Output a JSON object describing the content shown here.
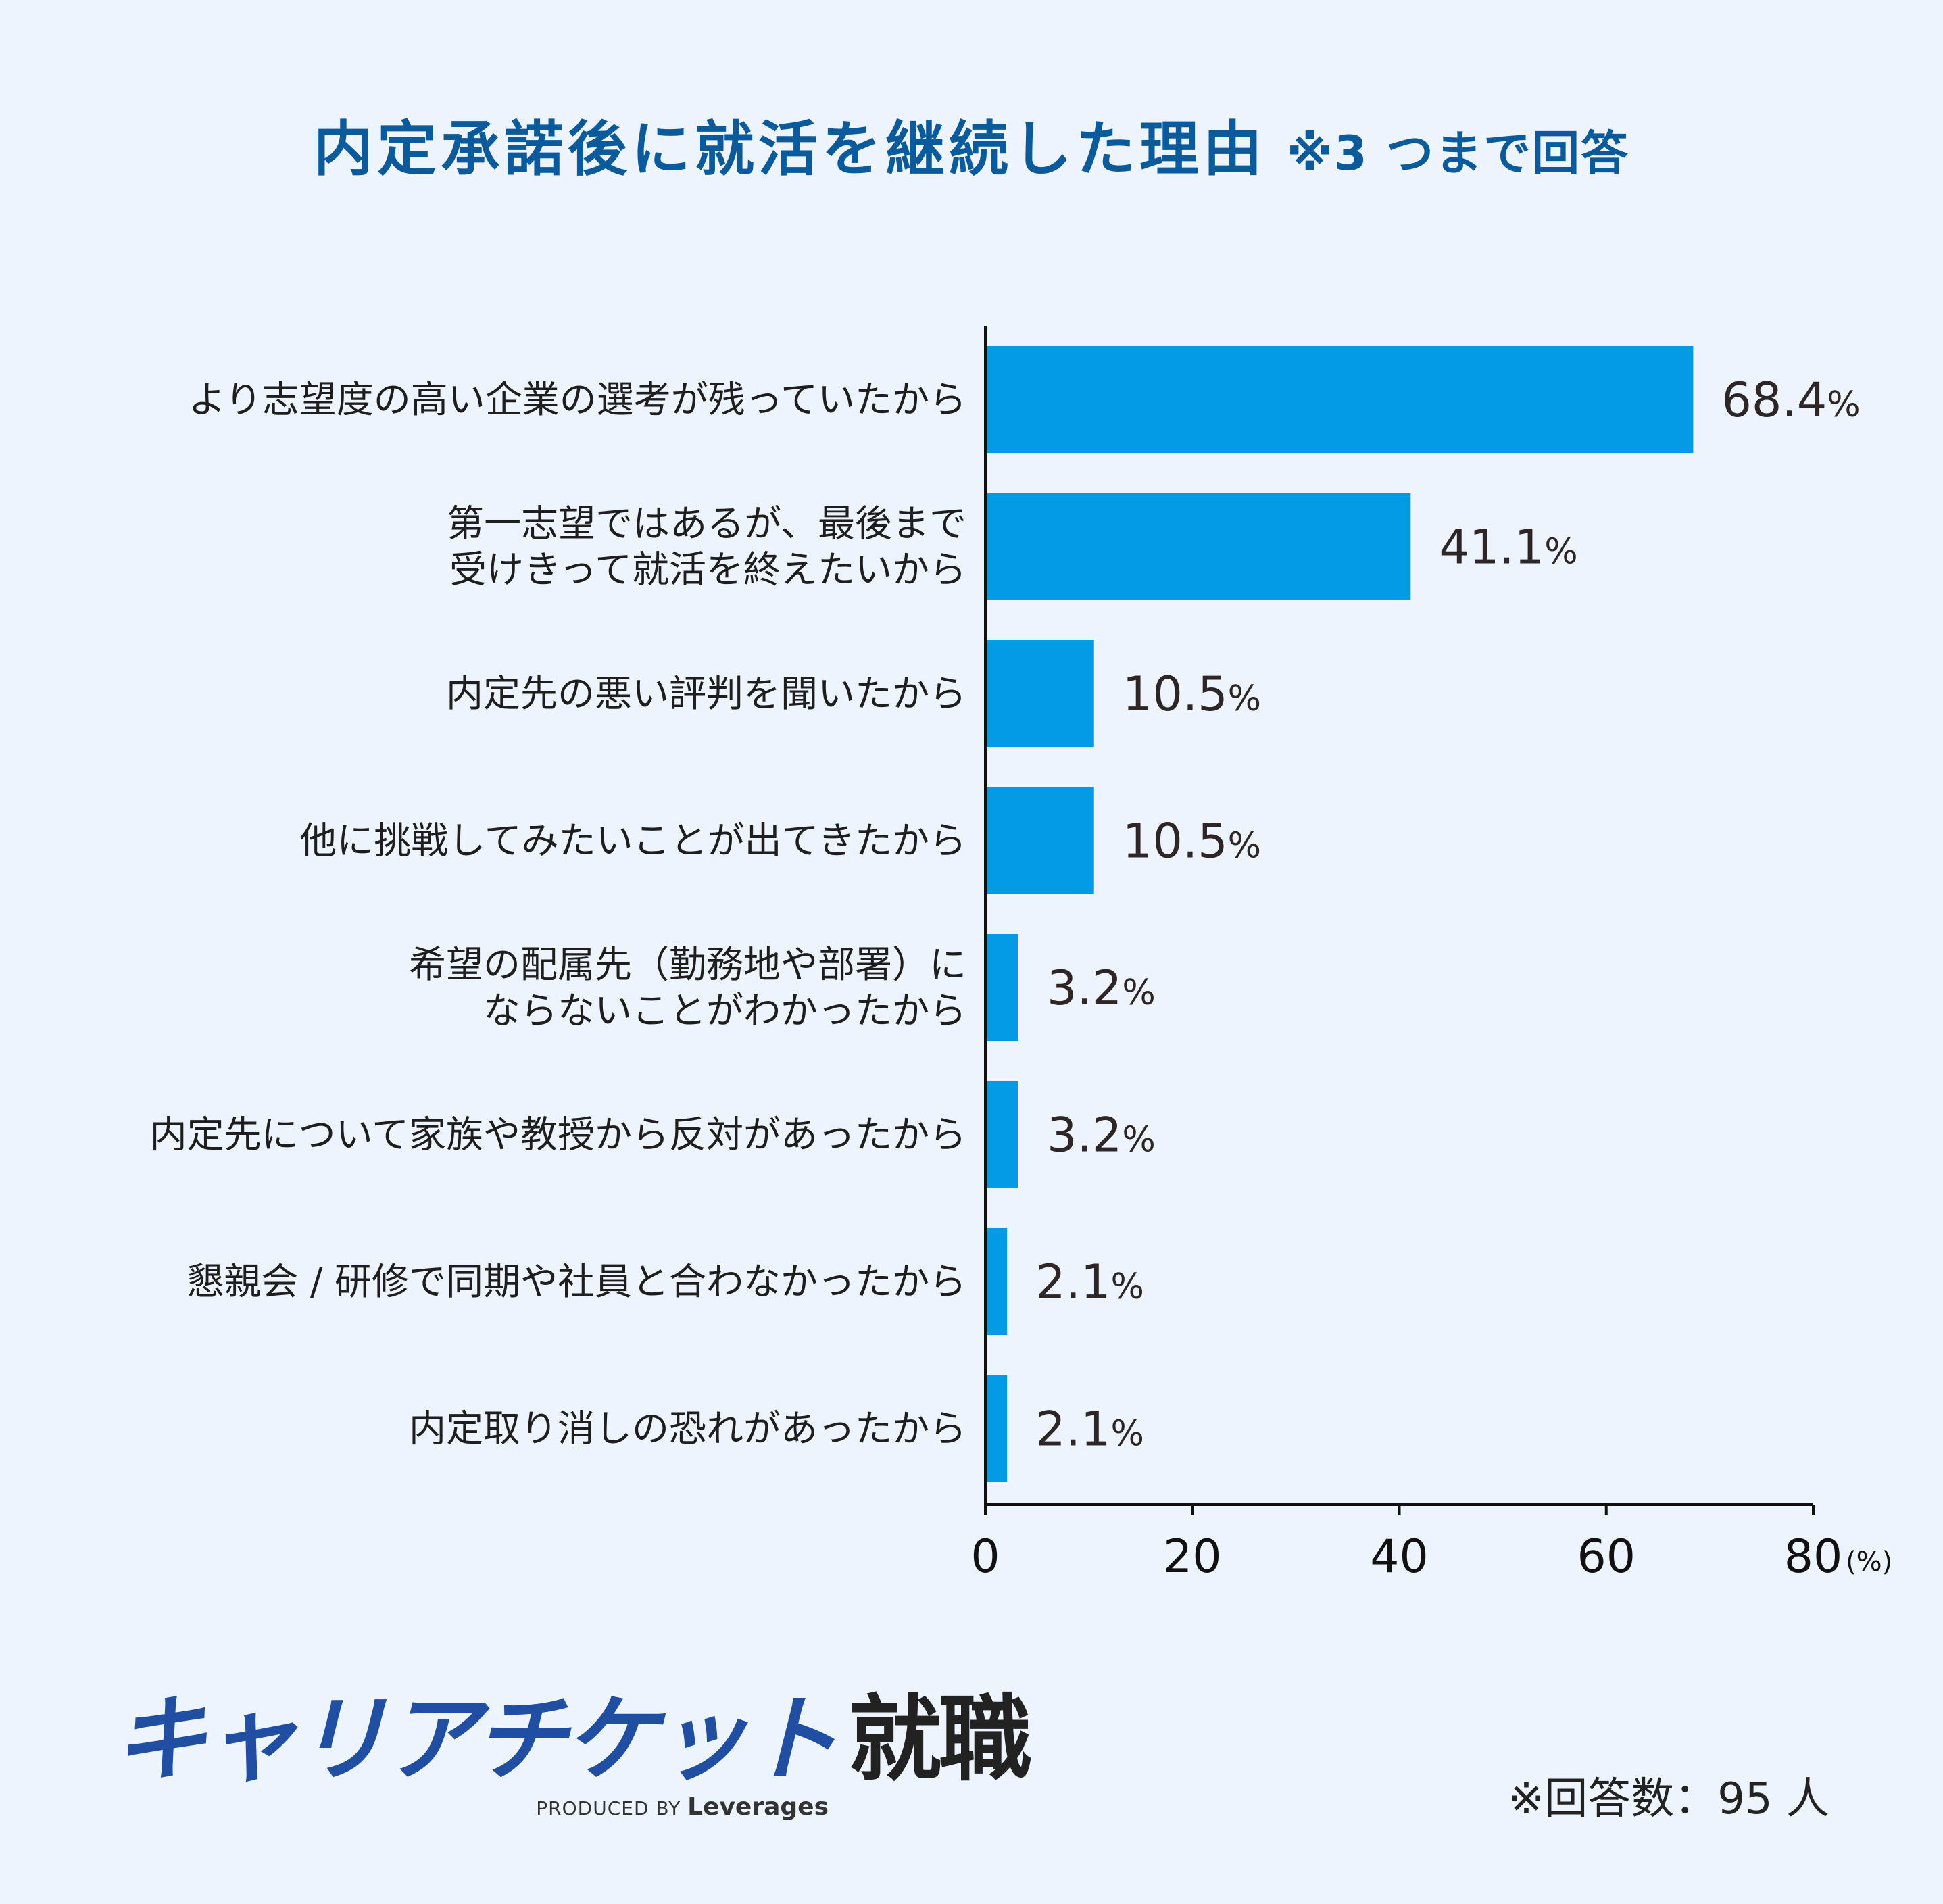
{
  "title": {
    "main": "内定承諾後に就活を継続した理由",
    "note": "※3 つまで回答"
  },
  "chart_data": {
    "type": "bar",
    "orientation": "horizontal",
    "categories": [
      [
        "より志望度の高い企業の選考が残っていたから"
      ],
      [
        "第一志望ではあるが、最後まで",
        "受けきって就活を終えたいから"
      ],
      [
        "内定先の悪い評判を聞いたから"
      ],
      [
        "他に挑戦してみたいことが出てきたから"
      ],
      [
        "希望の配属先（勤務地や部署）に",
        "ならないことがわかったから"
      ],
      [
        "内定先について家族や教授から反対があったから"
      ],
      [
        "懇親会 / 研修で同期や社員と合わなかったから"
      ],
      [
        "内定取り消しの恐れがあったから"
      ]
    ],
    "values": [
      68.4,
      41.1,
      10.5,
      10.5,
      3.2,
      3.2,
      2.1,
      2.1
    ],
    "value_labels": [
      "68.4",
      "41.1",
      "10.5",
      "10.5",
      "3.2",
      "3.2",
      "2.1",
      "2.1"
    ],
    "value_suffix": "%",
    "xlim": [
      0,
      80
    ],
    "xticks": [
      "0",
      "20",
      "40",
      "60",
      "80"
    ],
    "xunit": "(%)",
    "bar_color": "#039be5",
    "grid": false
  },
  "footer": {
    "logo_kana": "キャリアチケット",
    "logo_kanji": "就職",
    "produced_by": "PRODUCED BY",
    "company": "Leverages",
    "respondents": "※回答数：95 人"
  }
}
